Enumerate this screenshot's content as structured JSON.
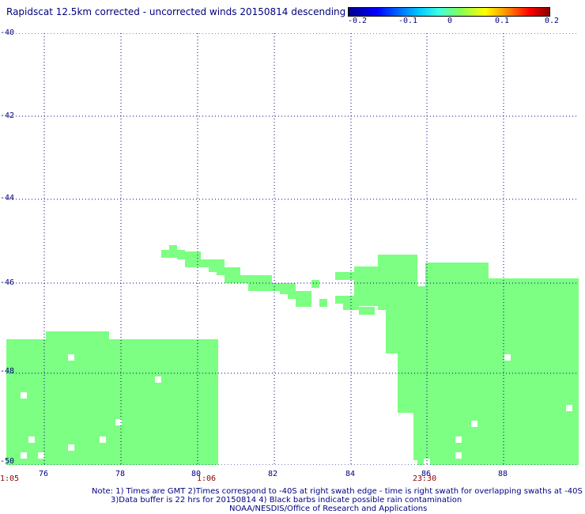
{
  "title": "Rapidscat 12.5km corrected - uncorrected winds 20150814 descending",
  "colorbar": {
    "ticks": [
      "-0.2",
      "-0.1",
      "0",
      "0.1",
      "0.2"
    ],
    "min": -0.2,
    "max": 0.2
  },
  "map": {
    "lon_range": [
      75,
      90
    ],
    "lat_range": [
      -50,
      -40
    ],
    "y_ticks": [
      "-40",
      "-42",
      "-44",
      "-46",
      "-48",
      "-50"
    ],
    "x_ticks": [
      "76",
      "78",
      "80",
      "82",
      "84",
      "86",
      "88"
    ],
    "grid": "dotted",
    "swath_color": "#7cff82",
    "time_labels": [
      "1:05",
      "1:06",
      "23:30"
    ]
  },
  "notes": {
    "line1": "Note: 1) Times are GMT 2)Times correspond to -40S at right swath edge - time is right swath for overlapping swaths at -40S",
    "line2": "3)Data buffer is 22 hrs for 20150814 4) Black barbs indicate possible rain contamination",
    "line3": "NOAA/NESDIS/Office of Research and Applications"
  }
}
